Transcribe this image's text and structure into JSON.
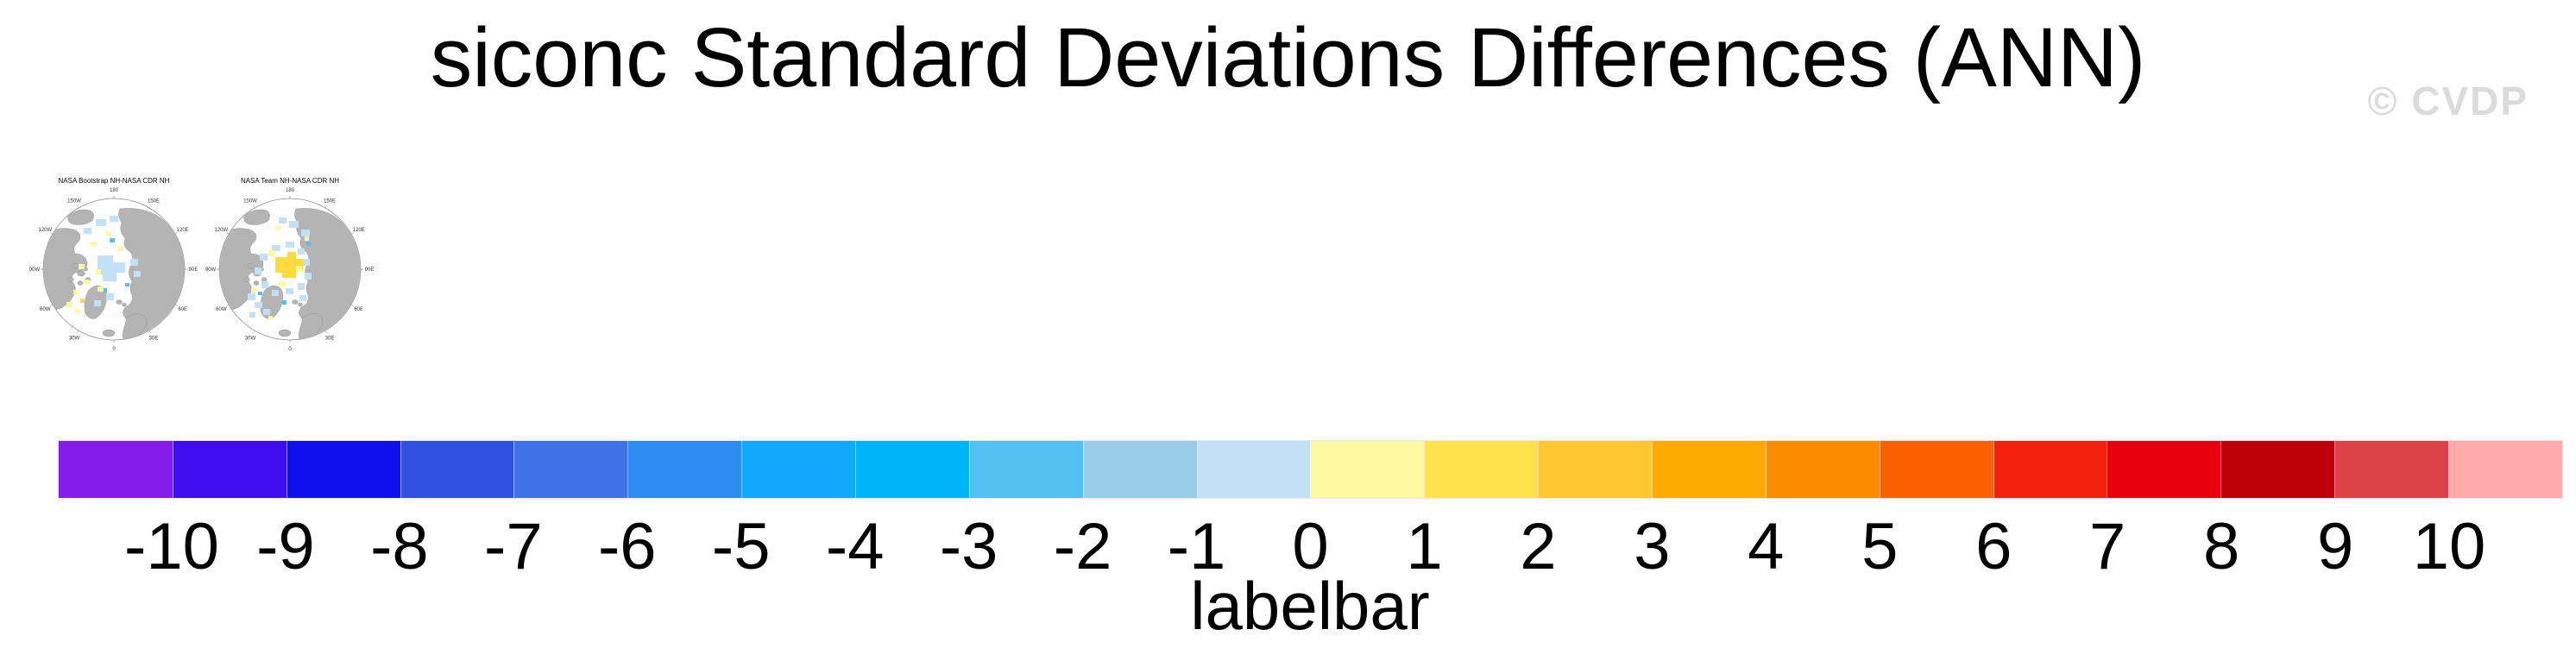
{
  "figure": {
    "title": "siconc Standard Deviations Differences (ANN)",
    "watermark": "© CVDP",
    "background": "#FFFFFF",
    "title_color": "#000000",
    "watermark_color": "#DBDBDB"
  },
  "panels": [
    {
      "title": "NASA Bootstrap NH-NASA CDR NH"
    },
    {
      "title": "NASA Team NH-NASA CDR NH"
    }
  ],
  "map": {
    "lon_labels": [
      "180",
      "150E",
      "120E",
      "90E",
      "60E",
      "30E",
      "0",
      "30W",
      "60W",
      "90W",
      "120W",
      "150W"
    ],
    "land_color": "#B4B4B4",
    "ocean_color": "#FFFFFF",
    "outline_color": "#8C8C8C",
    "patch_pale_blue": "#C2E0F6",
    "patch_deep_blue": "#52C0F0",
    "patch_pale_yellow": "#FEF8A0",
    "patch_gold": "#FFDC3C"
  },
  "chart_data": {
    "type": "heatmap",
    "title": "siconc Standard Deviations Differences (ANN)",
    "variable": "siconc standard deviation difference",
    "season": "ANN",
    "projection": "Northern Hemisphere polar stereographic",
    "panel_titles": [
      "NASA Bootstrap NH-NASA CDR NH",
      "NASA Team NH-NASA CDR NH"
    ],
    "panel_patterns": [
      "scattered pale-blue (≈ -1) patches across central Arctic with small pale-yellow (≈ +1) cells near coasts",
      "gold (≈ +2) blob centered near the pole surrounded by pale-blue (≈ -1) patches along Siberian and Canadian coasts"
    ],
    "colorbar": {
      "label": "labelbar",
      "orientation": "horizontal",
      "ticks": [
        -10,
        -9,
        -8,
        -7,
        -6,
        -5,
        -4,
        -3,
        -2,
        -1,
        0,
        1,
        2,
        3,
        4,
        5,
        6,
        7,
        8,
        9,
        10
      ],
      "colors": [
        "#851CEB",
        "#3F0DF0",
        "#100FF0",
        "#3150E2",
        "#3E72E6",
        "#2B8DF2",
        "#10A8FA",
        "#00B4F8",
        "#52C0F0",
        "#9ACCE8",
        "#C2E0F6",
        "#FEF8A0",
        "#FFE24C",
        "#FEC72E",
        "#FFAA00",
        "#FB8C00",
        "#FA6000",
        "#F5200C",
        "#E8000D",
        "#C00009",
        "#DD4247",
        "#FFAAAA"
      ]
    }
  }
}
